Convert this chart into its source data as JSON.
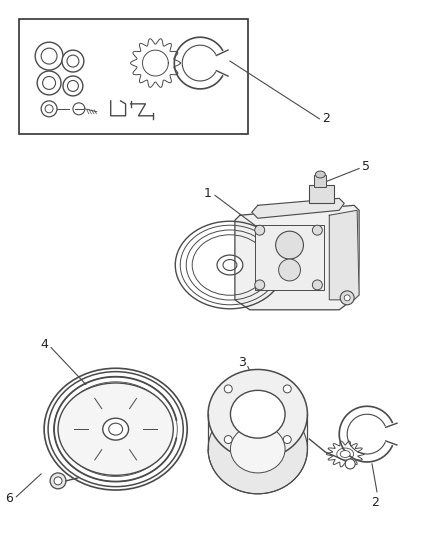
{
  "bg_color": "#ffffff",
  "lc": "#4a4a4a",
  "lc2": "#666666",
  "fig_width": 4.38,
  "fig_height": 5.33,
  "dpi": 100
}
